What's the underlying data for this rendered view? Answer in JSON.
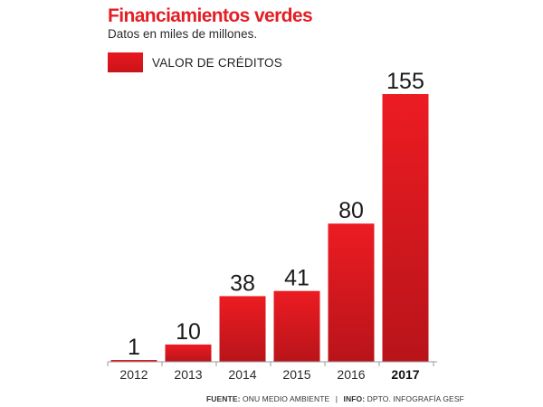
{
  "header": {
    "title": "Financiamientos verdes",
    "subtitle": "Datos en miles de millones."
  },
  "legend": {
    "label": "VALOR DE CRÉDITOS",
    "color": "#e31e24"
  },
  "chart_data": {
    "type": "bar",
    "title": "Financiamientos verdes",
    "subtitle": "Datos en miles de millones.",
    "categories": [
      "2012",
      "2013",
      "2014",
      "2015",
      "2016",
      "2017"
    ],
    "highlighted_category": "2017",
    "series": [
      {
        "name": "VALOR DE CRÉDITOS",
        "values": [
          1,
          10,
          38,
          41,
          80,
          155
        ],
        "color": "#e31e24"
      }
    ],
    "data_labels": [
      "1",
      "10",
      "38",
      "41",
      "80",
      "155"
    ],
    "xlabel": "",
    "ylabel": "",
    "ylim": [
      0,
      155
    ],
    "grid": false,
    "legend_position": "top-left"
  },
  "footer": {
    "source_label": "FUENTE:",
    "source_text": "ONU MEDIO AMBIENTE",
    "separator": "|",
    "info_label": "INFO:",
    "info_text": "DPTO. INFOGRAFÍA GESF"
  }
}
